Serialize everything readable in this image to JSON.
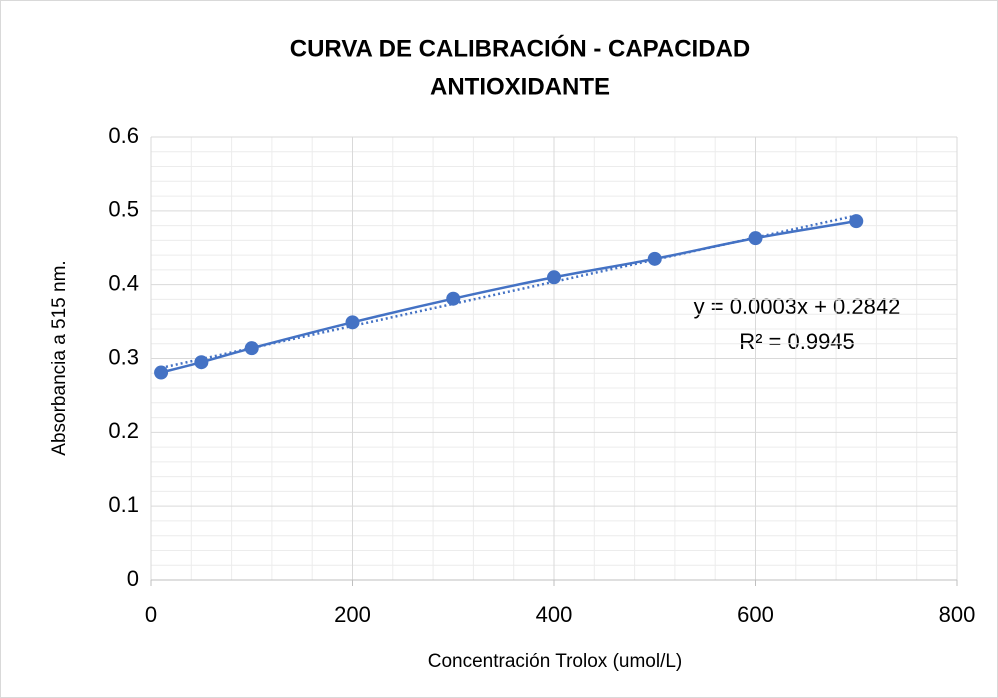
{
  "chart_data": {
    "type": "scatter",
    "title": [
      "CURVA DE CALIBRACIÓN - CAPACIDAD",
      "ANTIOXIDANTE"
    ],
    "x_label": "Concentración Trolox  (umol/L)",
    "y_label": "Absorbancia  a 515 nm.",
    "series": [
      {
        "name": "Absorbancia",
        "color": "#4472c4",
        "x": [
          10,
          50,
          100,
          200,
          300,
          400,
          500,
          600,
          700
        ],
        "values": [
          0.281,
          0.295,
          0.314,
          0.349,
          0.381,
          0.41,
          0.435,
          0.463,
          0.486
        ]
      }
    ],
    "trendline": {
      "type": "linear",
      "equation": "y = 0.0003x + 0.2842",
      "r_squared": "R² = 0.9945"
    },
    "xlim": [
      0,
      800
    ],
    "xticks": [
      0,
      200,
      400,
      600,
      800
    ],
    "ylim": [
      0,
      0.6
    ],
    "yticks": [
      0,
      0.1,
      0.2,
      0.3,
      0.4,
      0.5,
      0.6
    ],
    "grid": true,
    "minor_grid": true
  }
}
